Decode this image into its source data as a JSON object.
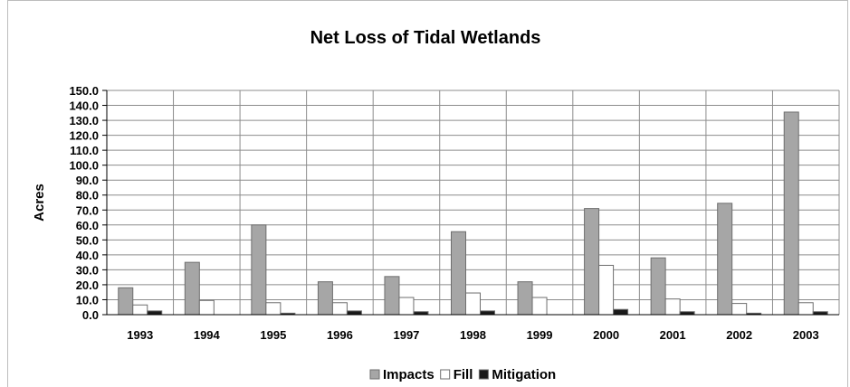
{
  "chart_data": {
    "type": "bar",
    "title": "Net Loss of Tidal Wetlands",
    "xlabel": "",
    "ylabel": "Acres",
    "ylim": [
      0,
      150
    ],
    "y_ticks": [
      "0.0",
      "10.0",
      "20.0",
      "30.0",
      "40.0",
      "50.0",
      "60.0",
      "70.0",
      "80.0",
      "90.0",
      "100.0",
      "110.0",
      "120.0",
      "130.0",
      "140.0",
      "150.0"
    ],
    "categories": [
      "1993",
      "1994",
      "1995",
      "1996",
      "1997",
      "1998",
      "1999",
      "2000",
      "2001",
      "2002",
      "2003"
    ],
    "series": [
      {
        "name": "Impacts",
        "color": "#a6a6a6",
        "values": [
          18.0,
          35.0,
          60.0,
          22.0,
          25.5,
          55.5,
          22.0,
          71.0,
          38.0,
          74.5,
          135.5
        ]
      },
      {
        "name": "Fill",
        "color": "#ffffff",
        "values": [
          6.5,
          9.5,
          8.0,
          8.0,
          11.5,
          14.5,
          11.5,
          33.0,
          10.5,
          7.5,
          8.0
        ]
      },
      {
        "name": "Mitigation",
        "color": "#1a1a1a",
        "values": [
          2.5,
          0.0,
          1.0,
          2.5,
          2.0,
          2.5,
          0.0,
          3.5,
          2.0,
          1.0,
          2.0
        ]
      }
    ],
    "grid": true,
    "legend_position": "bottom-center"
  }
}
